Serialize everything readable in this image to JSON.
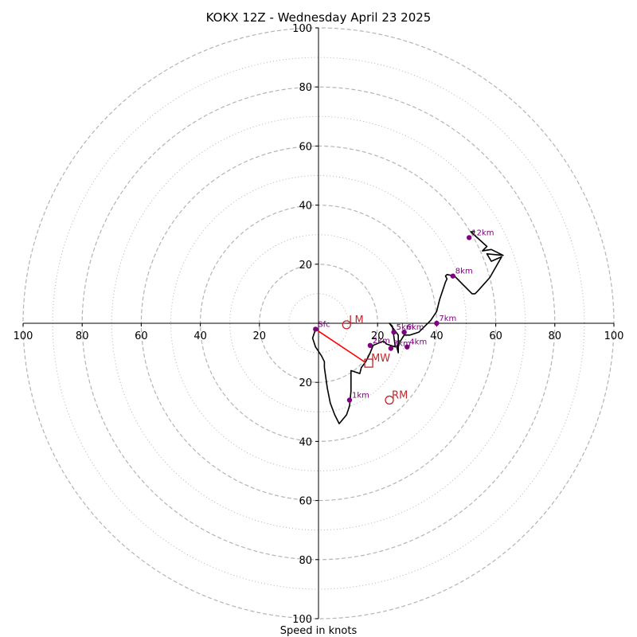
{
  "chart_data": {
    "type": "line",
    "title": "KOKX 12Z - Wednesday April 23 2025",
    "xlabel": "Speed in knots",
    "ylabel": "",
    "xlim": [
      -100,
      100
    ],
    "ylim": [
      -100,
      100
    ],
    "rings_major": [
      20,
      40,
      60,
      80,
      100
    ],
    "rings_minor": [
      10,
      30,
      50,
      70,
      90
    ],
    "x_tick_labels": [
      "100",
      "80",
      "60",
      "40",
      "20",
      "20",
      "40",
      "60",
      "80",
      "100"
    ],
    "y_tick_labels": [
      "100",
      "80",
      "60",
      "40",
      "20",
      "20",
      "40",
      "60",
      "80",
      "100"
    ],
    "x_tick_values": [
      -100,
      -80,
      -60,
      -40,
      -20,
      20,
      40,
      60,
      80,
      100
    ],
    "y_tick_values": [
      100,
      80,
      60,
      40,
      20,
      -20,
      -40,
      -60,
      -80,
      -100
    ],
    "hodograph": {
      "u": [
        -1,
        -2,
        -1,
        1,
        2,
        2,
        3,
        4,
        5.5,
        7,
        9.5,
        10.5,
        11,
        11,
        14,
        14.5,
        16,
        17.5,
        18.5,
        22,
        23,
        26,
        25,
        24,
        24,
        27,
        27,
        26.5,
        29,
        31,
        34,
        38,
        40,
        41,
        42,
        43,
        43.5,
        43,
        43.5,
        46,
        49,
        52,
        53,
        54,
        58,
        62,
        58.5,
        57,
        62.5,
        58.5,
        55.5,
        57,
        51.5,
        53
      ],
      "v": [
        -2,
        -5,
        -8,
        -11,
        -13,
        -15,
        -22,
        -27,
        -31,
        -34,
        -31,
        -28,
        -23,
        -16,
        -17,
        -15,
        -13,
        -10,
        -7.5,
        -6,
        -7,
        -8,
        -1,
        0,
        0,
        -4,
        -10,
        -8,
        -4,
        -4,
        -3,
        1,
        4,
        8,
        11,
        14,
        15,
        16,
        16.5,
        16,
        13,
        10,
        10,
        11,
        15.5,
        22.5,
        21,
        23.5,
        23,
        25,
        24.5,
        26,
        31,
        31
      ]
    },
    "height_markers": [
      {
        "label": "Sfc",
        "u": -1,
        "v": -2
      },
      {
        "label": "1km",
        "u": 10.5,
        "v": -26
      },
      {
        "label": "2km",
        "u": 17.5,
        "v": -7.5
      },
      {
        "label": "3km",
        "u": 24.5,
        "v": -8.5
      },
      {
        "label": "4km",
        "u": 30,
        "v": -8
      },
      {
        "label": "5km",
        "u": 25.5,
        "v": -3
      },
      {
        "label": "6km",
        "u": 29,
        "v": -3
      },
      {
        "label": "7km",
        "u": 40,
        "v": 0
      },
      {
        "label": "8km",
        "u": 45.5,
        "v": 16
      },
      {
        "label": "12km",
        "u": 51,
        "v": 29
      }
    ],
    "motion_markers": [
      {
        "label": "LM",
        "shape": "circle",
        "u": 9.5,
        "v": -0.5
      },
      {
        "label": "RM",
        "shape": "circle",
        "u": 24,
        "v": -26
      },
      {
        "label": "MW",
        "shape": "square",
        "u": 17,
        "v": -13.5
      }
    ],
    "shear_vector": {
      "from_u": -1,
      "from_v": -2,
      "to_u": 15.5,
      "to_v": -13
    },
    "colors": {
      "grid": "#b4b4b4",
      "trace": "#000000",
      "height_marker": "#800080",
      "motion": "#c0282e",
      "shear_vector": "#ff0000"
    }
  }
}
